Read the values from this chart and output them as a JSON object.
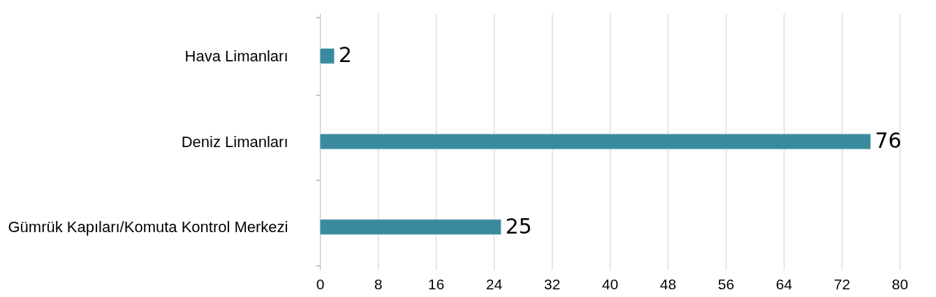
{
  "chart_data": {
    "type": "bar",
    "orientation": "horizontal",
    "categories": [
      "Hava Limanları",
      "Deniz Limanları",
      "Gümrük Kapıları/Komuta Kontrol Merkezi"
    ],
    "values": [
      2,
      76,
      25
    ],
    "color": "#3a8a9e",
    "xlim": [
      0,
      80
    ],
    "xticks": [
      0,
      8,
      16,
      24,
      32,
      40,
      48,
      56,
      64,
      72,
      80
    ],
    "grid": "x",
    "data_labels": true
  }
}
